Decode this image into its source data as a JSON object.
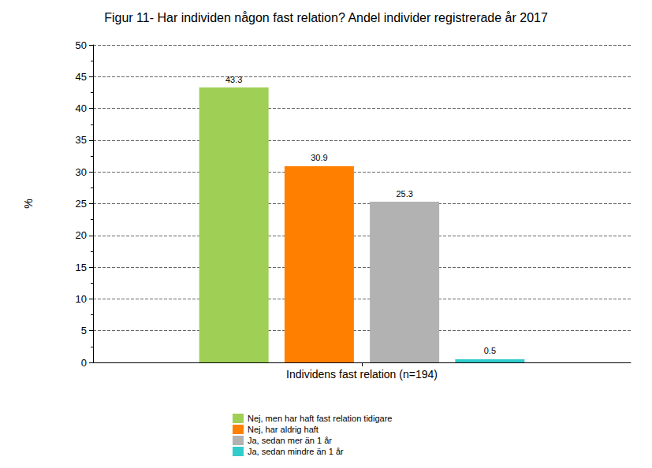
{
  "chart_data": {
    "type": "bar",
    "title": "Figur 11- Har individen någon fast relation? Andel individer registrerade år 2017",
    "ylabel": "%",
    "categories": [
      "Individens fast relation (n=194)"
    ],
    "series": [
      {
        "name": "Nej, men har haft fast relation tidigare",
        "color": "#9fcf55",
        "values": [
          43.3
        ]
      },
      {
        "name": "Nej, har aldrig haft",
        "color": "#ff8000",
        "values": [
          30.9
        ]
      },
      {
        "name": "Ja, sedan mer än 1 år",
        "color": "#b2b2b2",
        "values": [
          25.3
        ]
      },
      {
        "name": "Ja, sedan mindre än 1 år",
        "color": "#33cccc",
        "values": [
          0.5
        ]
      }
    ],
    "ylim": [
      0,
      50
    ],
    "yticks": [
      0,
      5,
      10,
      15,
      20,
      25,
      30,
      35,
      40,
      45,
      50
    ],
    "grid": true,
    "data_labels": true,
    "legend": "bottom"
  }
}
